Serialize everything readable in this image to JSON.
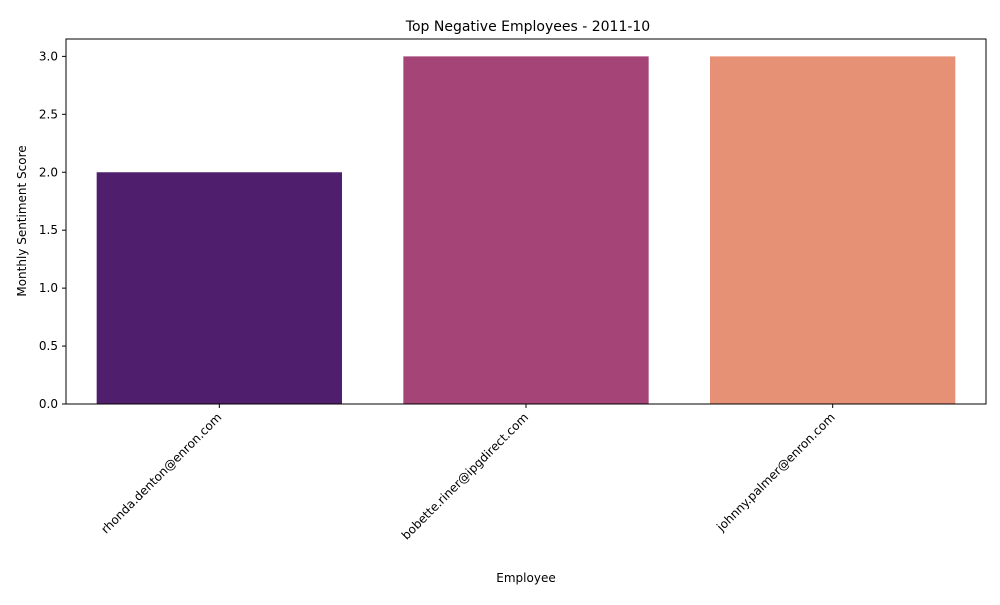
{
  "chart_data": {
    "type": "bar",
    "title": "Top Negative Employees - 2011-10",
    "xlabel": "Employee",
    "ylabel": "Monthly Sentiment Score",
    "categories": [
      "rhonda.denton@enron.com",
      "bobette.riner@ipgdirect.com",
      "johnny.palmer@enron.com"
    ],
    "values": [
      2,
      3,
      3
    ],
    "colors": [
      "#4f1f6e",
      "#a54577",
      "#e69175"
    ],
    "ylim": [
      0,
      3.15
    ],
    "yticks": [
      0.0,
      0.5,
      1.0,
      1.5,
      2.0,
      2.5,
      3.0
    ],
    "ytick_labels": [
      "0.0",
      "0.5",
      "1.0",
      "1.5",
      "2.0",
      "2.5",
      "3.0"
    ],
    "grid": false,
    "legend": "none"
  }
}
